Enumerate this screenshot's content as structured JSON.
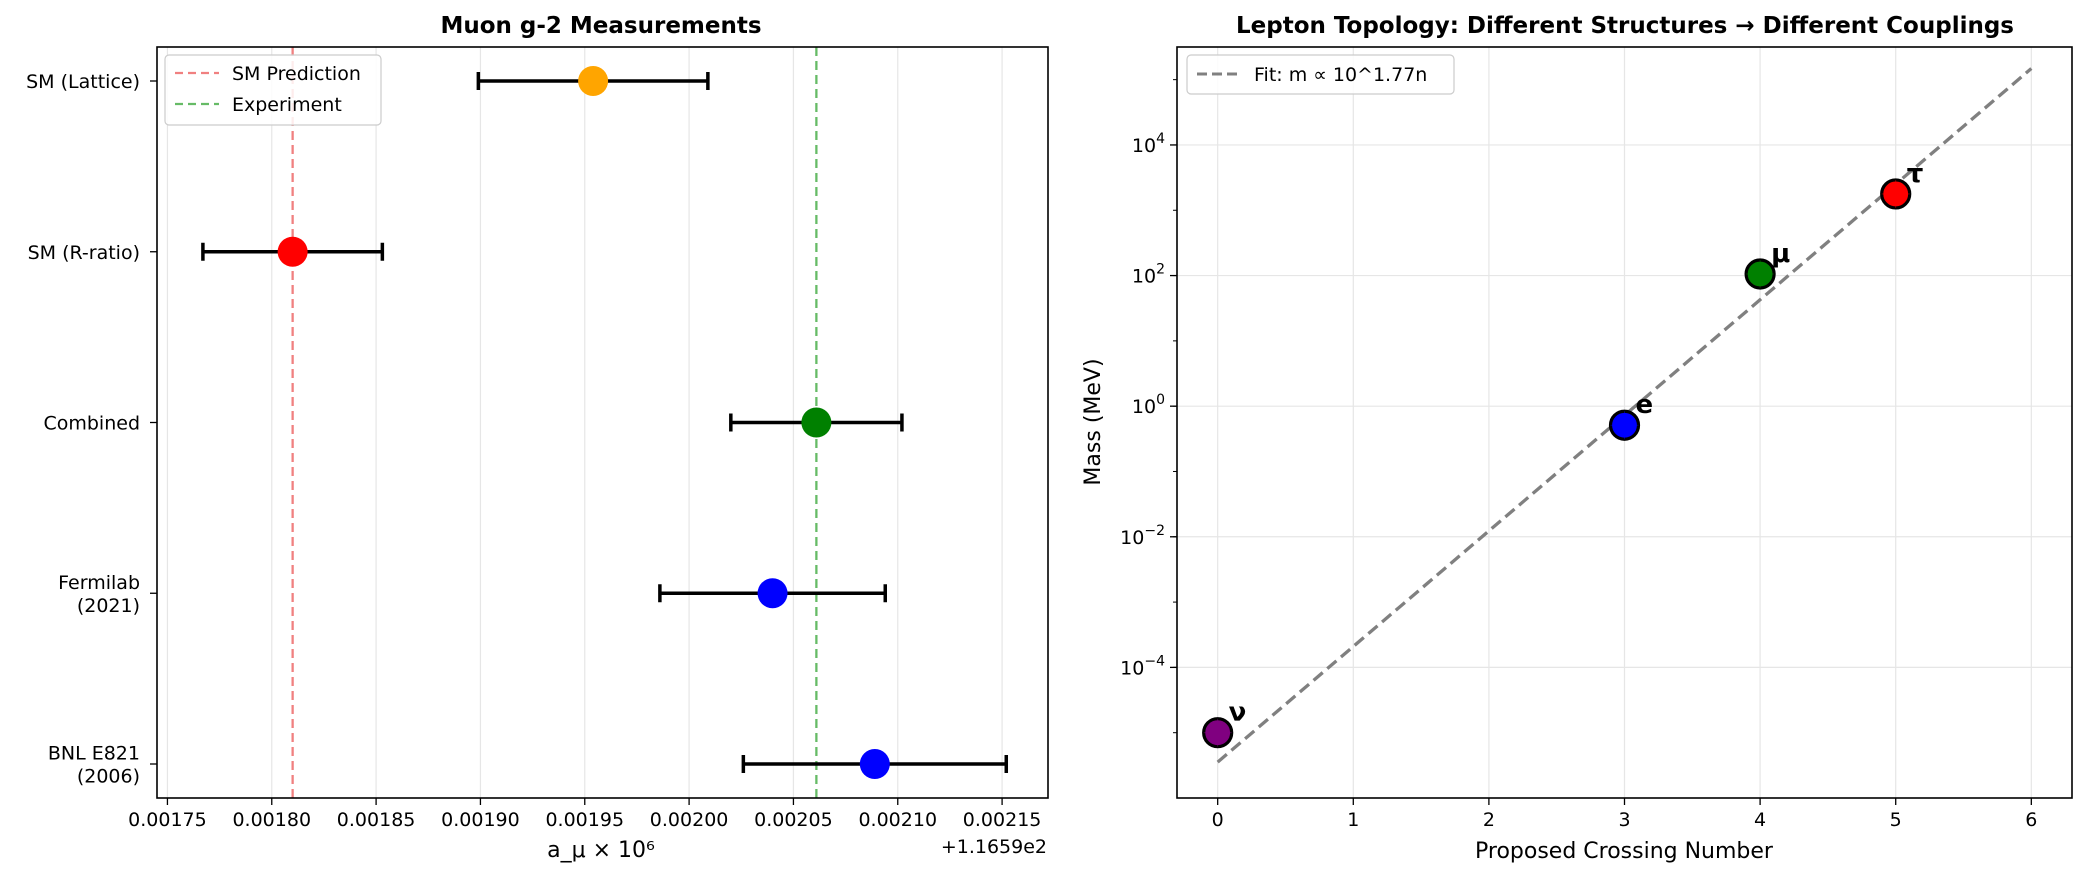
{
  "chart_data": [
    {
      "type": "errorbar",
      "title": "Muon g-2 Measurements",
      "xlabel": "a_μ × 10⁶",
      "ylabel": "",
      "offset_label": "+1.1659e2",
      "xlim": [
        0.001745,
        0.002172
      ],
      "x_ticks": [
        0.00175,
        0.0018,
        0.00185,
        0.0019,
        0.00195,
        0.002,
        0.00205,
        0.0021,
        0.00215
      ],
      "x_tick_labels": [
        "0.00175",
        "0.00180",
        "0.00185",
        "0.00190",
        "0.00195",
        "0.00200",
        "0.00205",
        "0.00210",
        "0.00215"
      ],
      "grid": "x",
      "legend_position": "top-left",
      "points": [
        {
          "label": "SM (Lattice)",
          "label_lines": [
            "SM (Lattice)"
          ],
          "value": 0.001954,
          "error": 5.5e-05,
          "color": "#FFA500"
        },
        {
          "label": "SM (R-ratio)",
          "label_lines": [
            "SM (R-ratio)"
          ],
          "value": 0.00181,
          "error": 4.3e-05,
          "color": "#FF0000"
        },
        {
          "label": "Combined",
          "label_lines": [
            "Combined"
          ],
          "value": 0.002061,
          "error": 4.1e-05,
          "color": "#008000"
        },
        {
          "label": "Fermilab (2021)",
          "label_lines": [
            "Fermilab",
            "(2021)"
          ],
          "value": 0.00204,
          "error": 5.4e-05,
          "color": "#0000FF"
        },
        {
          "label": "BNL E821 (2006)",
          "label_lines": [
            "BNL E821",
            "(2006)"
          ],
          "value": 0.002089,
          "error": 6.3e-05,
          "color": "#0000FF"
        }
      ],
      "reference_lines": [
        {
          "name": "SM Prediction",
          "value": 0.00181,
          "color": "#F08080"
        },
        {
          "name": "Experiment",
          "value": 0.002061,
          "color": "#66BB66"
        }
      ]
    },
    {
      "type": "scatter",
      "title": "Lepton Topology: Different Structures → Different Couplings",
      "xlabel": "Proposed Crossing Number",
      "ylabel": "Mass (MeV)",
      "y_scale": "log",
      "xlim": [
        -0.3,
        6.3
      ],
      "ylim_log10": [
        -6.0,
        5.5
      ],
      "x_ticks": [
        0,
        1,
        2,
        3,
        4,
        5,
        6
      ],
      "x_tick_labels": [
        "0",
        "1",
        "2",
        "3",
        "4",
        "5",
        "6"
      ],
      "y_ticks": [
        {
          "base": "10",
          "exp": "−4",
          "log10": -4
        },
        {
          "base": "10",
          "exp": "−2",
          "log10": -2
        },
        {
          "base": "10",
          "exp": "0",
          "log10": 0
        },
        {
          "base": "10",
          "exp": "2",
          "log10": 2
        },
        {
          "base": "10",
          "exp": "4",
          "log10": 4
        }
      ],
      "grid": true,
      "legend_position": "top-left",
      "points": [
        {
          "label": "ν",
          "x": 0,
          "y": 1e-05,
          "color": "#800080"
        },
        {
          "label": "e",
          "x": 3,
          "y": 0.511,
          "color": "#0000FF"
        },
        {
          "label": "μ",
          "x": 4,
          "y": 105.66,
          "color": "#008000"
        },
        {
          "label": "τ",
          "x": 5,
          "y": 1776.86,
          "color": "#FF0000"
        }
      ],
      "fit": {
        "name": "Fit: m ∝ 10^1.77n",
        "x_range": [
          0,
          6
        ],
        "slope_log10": 1.77,
        "intercept_log10": -5.45,
        "color": "#808080"
      }
    }
  ]
}
